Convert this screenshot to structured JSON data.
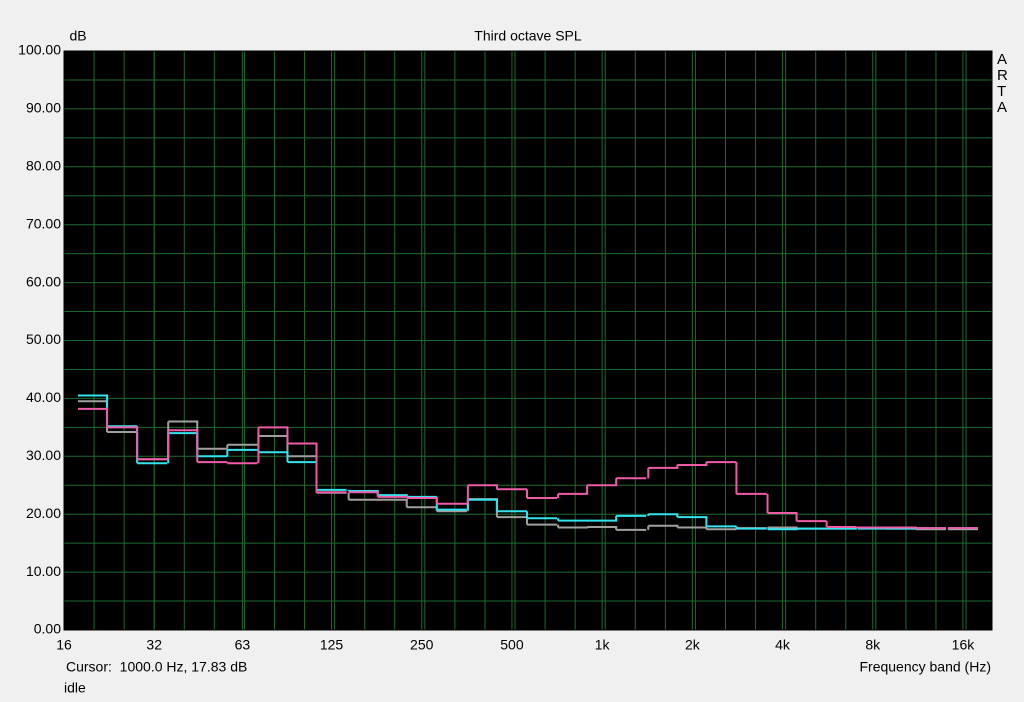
{
  "chart_data": {
    "type": "step",
    "title": "Third octave SPL",
    "y_label": "dB",
    "x_label": "Frequency band (Hz)",
    "watermark": "ARTA",
    "cursor_text": "Cursor:  1000.0 Hz, 17.83 dB",
    "status": "idle",
    "x_scale": "log",
    "grid": true,
    "x": [
      20,
      25,
      31.5,
      40,
      50,
      63,
      80,
      100,
      125,
      160,
      200,
      250,
      315,
      400,
      500,
      630,
      800,
      1000,
      1250,
      1600,
      2000,
      2500,
      3150,
      4000,
      5000,
      6300,
      8000,
      10000,
      12500,
      16000
    ],
    "series": [
      {
        "color": "#a0a0a0",
        "values": [
          39.5,
          34.2,
          29.5,
          36,
          31.3,
          32,
          33.5,
          30,
          23.7,
          22.5,
          22.5,
          21.2,
          20.5,
          22.6,
          19.5,
          18.2,
          17.7,
          17.8,
          17.3,
          18,
          17.7,
          17.4,
          17.6,
          17.7,
          17.5,
          17.5,
          17.7,
          17.5,
          17.4,
          17.4
        ]
      },
      {
        "color": "#33e4ee",
        "values": [
          40.5,
          35.2,
          28.8,
          34,
          30,
          31.1,
          30.7,
          29,
          24.2,
          24,
          23.3,
          23,
          20.8,
          22.5,
          20.5,
          19.3,
          18.9,
          18.9,
          19.7,
          20,
          19.5,
          17.9,
          17.5,
          17.4,
          17.5,
          17.5,
          17.5,
          17.5,
          17.6,
          17.6
        ]
      },
      {
        "color": "#ee5ca8",
        "values": [
          38.2,
          35,
          29.5,
          34.5,
          29,
          28.8,
          35,
          32.2,
          23.8,
          23.8,
          23,
          22.8,
          21.8,
          25,
          24.3,
          22.8,
          23.5,
          25,
          26.2,
          28,
          28.5,
          29,
          23.5,
          20.2,
          18.8,
          17.8,
          17.7,
          17.7,
          17.6,
          17.6
        ]
      }
    ],
    "xlim": [
      16,
      20000
    ],
    "xticks": [
      16,
      32,
      63,
      125,
      250,
      500,
      {
        "value": 1000,
        "label": "1k"
      },
      {
        "value": 2000,
        "label": "2k"
      },
      {
        "value": 4000,
        "label": "4k"
      },
      {
        "value": 8000,
        "label": "8k"
      },
      {
        "value": 16000,
        "label": "16k"
      }
    ],
    "ylim": [
      0,
      100
    ],
    "yticks": [
      {
        "value": 0,
        "label": "0.00"
      },
      {
        "value": 10,
        "label": "10.00"
      },
      {
        "value": 20,
        "label": "20.00"
      },
      {
        "value": 30,
        "label": "30.00"
      },
      {
        "value": 40,
        "label": "40.00"
      },
      {
        "value": 50,
        "label": "50.00"
      },
      {
        "value": 60,
        "label": "60.00"
      },
      {
        "value": 70,
        "label": "70.00"
      },
      {
        "value": 80,
        "label": "80.00"
      },
      {
        "value": 90,
        "label": "90.00"
      },
      {
        "value": 100,
        "label": "100.00"
      }
    ]
  }
}
